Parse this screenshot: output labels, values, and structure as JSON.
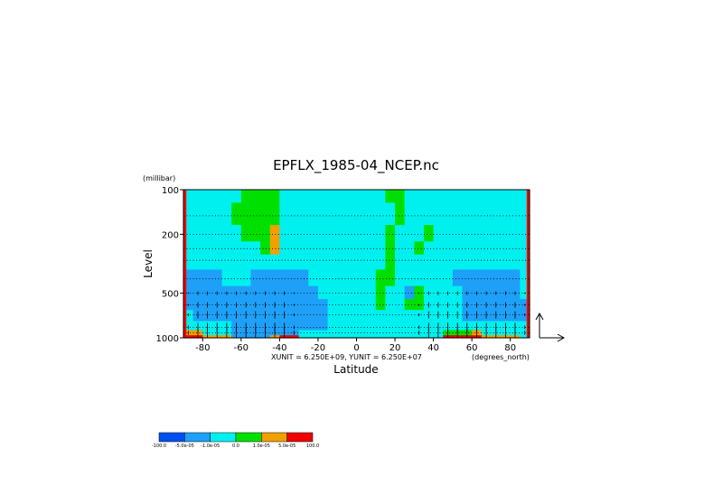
{
  "chart_data": {
    "type": "heatmap",
    "title": "EPFLX_1985-04_NCEP.nc",
    "xlabel": "Latitude",
    "ylabel": "Level",
    "y_unit_label": "(millibar)",
    "x_unit_label": "(degrees_north)",
    "vector_scale_label": "XUNIT = 6.250E+09, YUNIT = 6.250E+07",
    "x_ticks": [
      -80,
      -60,
      -40,
      -20,
      0,
      20,
      40,
      60,
      80
    ],
    "x_tick_labels": [
      "-80",
      "-60",
      "-40",
      "-20",
      "0",
      "20",
      "40",
      "60",
      "80"
    ],
    "y_ticks": [
      100,
      200,
      500,
      1000
    ],
    "y_tick_labels": [
      "100",
      "200",
      "500",
      "1000"
    ],
    "xlim": [
      -90,
      90
    ],
    "ylim": [
      1000,
      100
    ],
    "y_scale": "log",
    "grid": "dotted horizontal lines at pressure levels",
    "colorbar": {
      "boundary_labels": [
        "-100.0",
        "-5.0e-05",
        "-1.0e-05",
        "0.0",
        "1.0e-05",
        "5.0e-05",
        "100.0"
      ],
      "colors": [
        "#0050f0",
        "#1ea0f8",
        "#00f0f0",
        "#00e000",
        "#f0a000",
        "#f00000"
      ]
    },
    "levels": [
      100,
      150,
      200,
      250,
      300,
      400,
      500,
      600,
      700,
      850,
      925,
      1000
    ],
    "latitudes": [
      -87.5,
      -82.5,
      -77.5,
      -72.5,
      -67.5,
      -62.5,
      -57.5,
      -52.5,
      -47.5,
      -42.5,
      -37.5,
      -32.5,
      -27.5,
      -22.5,
      -17.5,
      -12.5,
      -7.5,
      -2.5,
      2.5,
      7.5,
      12.5,
      17.5,
      22.5,
      27.5,
      32.5,
      37.5,
      42.5,
      47.5,
      52.5,
      57.5,
      62.5,
      67.5,
      72.5,
      77.5,
      82.5,
      87.5
    ],
    "field_class_rows": [
      "222222333322222222222332222222222222",
      "222223333322222222222232222222222222",
      "222222333422222222222322232222222222",
      "222222223422222222222322322222222222",
      "222222222222222222222322222222222222",
      "111122211111122222223322222211111112",
      "111111111111112222223221322221111112",
      "111111111111111222223223322221111111",
      "211111111111111222222222222221111111",
      "222221111111111222222222222222222222",
      "442221111111222222222222222333422222",
      "554441111455222222222222222555544442"
    ]
  }
}
